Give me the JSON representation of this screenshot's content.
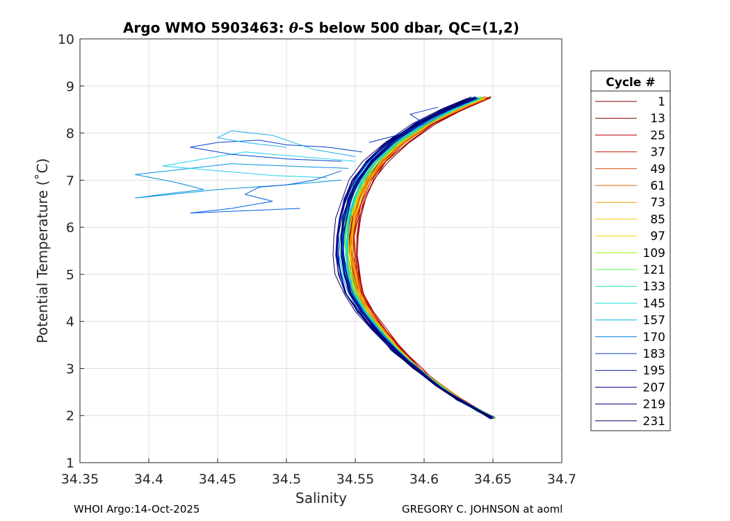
{
  "chart_data": {
    "type": "line",
    "title_prefix": "Argo WMO 5903463: ",
    "title_theta": "θ",
    "title_suffix": "-S below 500 dbar,  QC=(1,2)",
    "xlabel": "Salinity",
    "ylabel": "Potential Temperature (˚C)",
    "xlim": [
      34.35,
      34.7
    ],
    "ylim": [
      1,
      10
    ],
    "xticks": [
      "34.35",
      "34.4",
      "34.45",
      "34.5",
      "34.55",
      "34.6",
      "34.65",
      "34.7"
    ],
    "yticks": [
      "1",
      "2",
      "3",
      "4",
      "5",
      "6",
      "7",
      "8",
      "9",
      "10"
    ],
    "grid": true,
    "legend_position": "outside-right",
    "legend_title": "Cycle #",
    "legend": [
      {
        "label": "1",
        "color": "#800000"
      },
      {
        "label": "13",
        "color": "#9a0000"
      },
      {
        "label": "25",
        "color": "#b40000"
      },
      {
        "label": "37",
        "color": "#c81c00"
      },
      {
        "label": "49",
        "color": "#d84000"
      },
      {
        "label": "61",
        "color": "#e46a00"
      },
      {
        "label": "73",
        "color": "#f0a000"
      },
      {
        "label": "85",
        "color": "#fac800"
      },
      {
        "label": "97",
        "color": "#e0e000"
      },
      {
        "label": "109",
        "color": "#a0f000"
      },
      {
        "label": "121",
        "color": "#50f050"
      },
      {
        "label": "133",
        "color": "#20e0a0"
      },
      {
        "label": "145",
        "color": "#20e0e0"
      },
      {
        "label": "157",
        "color": "#00b4f0"
      },
      {
        "label": "170",
        "color": "#0080e0"
      },
      {
        "label": "183",
        "color": "#0040d0"
      },
      {
        "label": "195",
        "color": "#0010b0"
      },
      {
        "label": "207",
        "color": "#000090"
      },
      {
        "label": "219",
        "color": "#000078"
      },
      {
        "label": "231",
        "color": "#000060"
      }
    ],
    "curve_template": [
      {
        "s": 34.65,
        "t": 1.95
      },
      {
        "s": 34.64,
        "t": 2.1
      },
      {
        "s": 34.625,
        "t": 2.35
      },
      {
        "s": 34.61,
        "t": 2.65
      },
      {
        "s": 34.595,
        "t": 3.0
      },
      {
        "s": 34.58,
        "t": 3.4
      },
      {
        "s": 34.568,
        "t": 3.8
      },
      {
        "s": 34.557,
        "t": 4.2
      },
      {
        "s": 34.549,
        "t": 4.6
      },
      {
        "s": 34.545,
        "t": 5.0
      },
      {
        "s": 34.543,
        "t": 5.4
      },
      {
        "s": 34.543,
        "t": 5.8
      },
      {
        "s": 34.545,
        "t": 6.2
      },
      {
        "s": 34.549,
        "t": 6.6
      },
      {
        "s": 34.555,
        "t": 7.0
      },
      {
        "s": 34.565,
        "t": 7.4
      },
      {
        "s": 34.58,
        "t": 7.8
      },
      {
        "s": 34.6,
        "t": 8.2
      },
      {
        "s": 34.62,
        "t": 8.5
      },
      {
        "s": 34.64,
        "t": 8.75
      }
    ],
    "anomalous_profiles": [
      {
        "color": "#0090e0",
        "points": [
          {
            "s": 34.545,
            "t": 7.25
          },
          {
            "s": 34.5,
            "t": 7.3
          },
          {
            "s": 34.46,
            "t": 7.35
          },
          {
            "s": 34.43,
            "t": 7.25
          },
          {
            "s": 34.39,
            "t": 7.12
          },
          {
            "s": 34.42,
            "t": 6.95
          },
          {
            "s": 34.44,
            "t": 6.8
          },
          {
            "s": 34.41,
            "t": 6.7
          },
          {
            "s": 34.39,
            "t": 6.62
          },
          {
            "s": 34.45,
            "t": 6.8
          },
          {
            "s": 34.5,
            "t": 6.9
          },
          {
            "s": 34.54,
            "t": 7.0
          }
        ]
      },
      {
        "color": "#20d0e8",
        "points": [
          {
            "s": 34.55,
            "t": 7.4
          },
          {
            "s": 34.51,
            "t": 7.5
          },
          {
            "s": 34.47,
            "t": 7.6
          },
          {
            "s": 34.44,
            "t": 7.45
          },
          {
            "s": 34.41,
            "t": 7.3
          },
          {
            "s": 34.45,
            "t": 7.2
          },
          {
            "s": 34.49,
            "t": 7.1
          },
          {
            "s": 34.53,
            "t": 7.05
          }
        ]
      },
      {
        "color": "#0040d0",
        "points": [
          {
            "s": 34.555,
            "t": 7.6
          },
          {
            "s": 34.53,
            "t": 7.7
          },
          {
            "s": 34.5,
            "t": 7.75
          },
          {
            "s": 34.48,
            "t": 7.85
          },
          {
            "s": 34.45,
            "t": 7.8
          },
          {
            "s": 34.43,
            "t": 7.7
          },
          {
            "s": 34.46,
            "t": 7.55
          },
          {
            "s": 34.5,
            "t": 7.45
          },
          {
            "s": 34.54,
            "t": 7.4
          }
        ]
      },
      {
        "color": "#0030c0",
        "points": [
          {
            "s": 34.56,
            "t": 7.8
          },
          {
            "s": 34.58,
            "t": 7.95
          },
          {
            "s": 34.6,
            "t": 8.2
          },
          {
            "s": 34.59,
            "t": 8.4
          },
          {
            "s": 34.61,
            "t": 8.55
          }
        ]
      },
      {
        "color": "#0060e0",
        "points": [
          {
            "s": 34.54,
            "t": 7.2
          },
          {
            "s": 34.52,
            "t": 7.0
          },
          {
            "s": 34.5,
            "t": 6.9
          },
          {
            "s": 34.48,
            "t": 6.85
          },
          {
            "s": 34.47,
            "t": 6.7
          },
          {
            "s": 34.49,
            "t": 6.55
          },
          {
            "s": 34.46,
            "t": 6.4
          },
          {
            "s": 34.43,
            "t": 6.3
          },
          {
            "s": 34.47,
            "t": 6.35
          },
          {
            "s": 34.51,
            "t": 6.4
          }
        ]
      },
      {
        "color": "#20b0f0",
        "points": [
          {
            "s": 34.55,
            "t": 7.5
          },
          {
            "s": 34.52,
            "t": 7.65
          },
          {
            "s": 34.49,
            "t": 7.95
          },
          {
            "s": 34.46,
            "t": 8.05
          },
          {
            "s": 34.45,
            "t": 7.9
          },
          {
            "s": 34.47,
            "t": 7.8
          },
          {
            "s": 34.5,
            "t": 7.7
          }
        ]
      }
    ]
  },
  "footer": {
    "left": "WHOI Argo:14-Oct-2025",
    "right": "GREGORY C. JOHNSON at aoml"
  }
}
